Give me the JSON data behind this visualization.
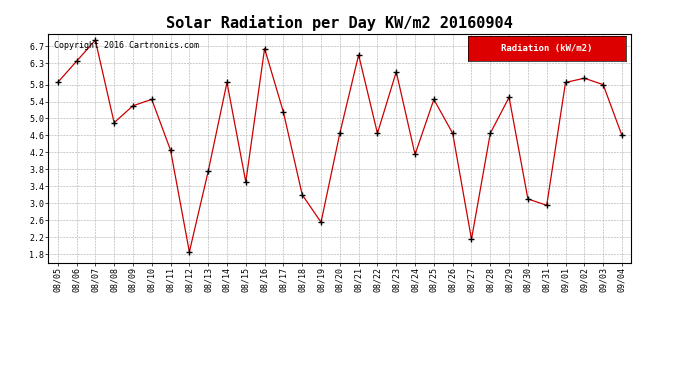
{
  "title": "Solar Radiation per Day KW/m2 20160904",
  "copyright_text": "Copyright 2016 Cartronics.com",
  "legend_label": "Radiation (kW/m2)",
  "dates": [
    "08/05",
    "08/06",
    "08/07",
    "08/08",
    "08/09",
    "08/10",
    "08/11",
    "08/12",
    "08/13",
    "08/14",
    "08/15",
    "08/16",
    "08/17",
    "08/18",
    "08/19",
    "08/20",
    "08/21",
    "08/22",
    "08/23",
    "08/24",
    "08/25",
    "08/26",
    "08/27",
    "08/28",
    "08/29",
    "08/30",
    "08/31",
    "09/01",
    "09/02",
    "09/03",
    "09/04"
  ],
  "values": [
    5.85,
    6.35,
    6.85,
    4.9,
    5.3,
    5.45,
    4.25,
    1.85,
    3.75,
    5.85,
    3.5,
    6.65,
    5.15,
    3.2,
    2.55,
    4.65,
    6.5,
    4.65,
    6.1,
    4.15,
    5.45,
    4.65,
    2.15,
    4.65,
    5.5,
    3.1,
    2.95,
    5.85,
    5.95,
    5.8,
    4.6
  ],
  "line_color": "#cc0000",
  "marker": "+",
  "marker_color": "black",
  "bg_color": "#ffffff",
  "plot_bg_color": "#ffffff",
  "grid_color": "#aaaaaa",
  "ylim": [
    1.6,
    7.0
  ],
  "ytick_vals": [
    1.8,
    2.2,
    2.6,
    3.0,
    3.4,
    3.8,
    4.2,
    4.6,
    5.0,
    5.4,
    5.8,
    6.3,
    6.7
  ],
  "ytick_labels": [
    "1.8",
    "2.2",
    "2.6",
    "3.0",
    "3.4",
    "3.8",
    "4.2",
    "4.6",
    "5.0",
    "5.4",
    "5.8",
    "6.3",
    "6.7"
  ],
  "legend_bg": "#dd0000",
  "legend_text_color": "#ffffff",
  "title_fontsize": 11,
  "tick_fontsize": 6,
  "copyright_fontsize": 6,
  "legend_fontsize": 6.5
}
